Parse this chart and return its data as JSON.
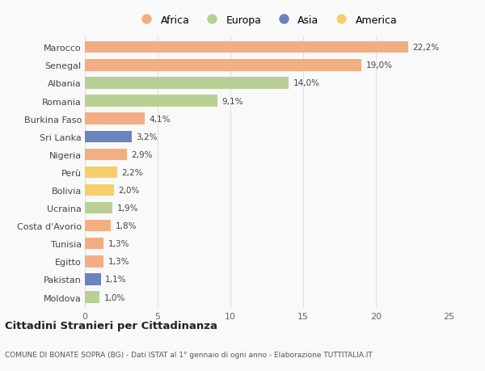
{
  "countries": [
    "Marocco",
    "Senegal",
    "Albania",
    "Romania",
    "Burkina Faso",
    "Sri Lanka",
    "Nigeria",
    "Perù",
    "Bolivia",
    "Ucraina",
    "Costa d'Avorio",
    "Tunisia",
    "Egitto",
    "Pakistan",
    "Moldova"
  ],
  "values": [
    22.2,
    19.0,
    14.0,
    9.1,
    4.1,
    3.2,
    2.9,
    2.2,
    2.0,
    1.9,
    1.8,
    1.3,
    1.3,
    1.1,
    1.0
  ],
  "continents": [
    "Africa",
    "Africa",
    "Europa",
    "Europa",
    "Africa",
    "Asia",
    "Africa",
    "America",
    "America",
    "Europa",
    "Africa",
    "Africa",
    "Africa",
    "Asia",
    "Europa"
  ],
  "colors": {
    "Africa": "#F2AE82",
    "Europa": "#BACF96",
    "Asia": "#6B84C0",
    "America": "#F5D06A"
  },
  "xlim": [
    0,
    25
  ],
  "xticks": [
    0,
    5,
    10,
    15,
    20,
    25
  ],
  "title": "Cittadini Stranieri per Cittadinanza",
  "subtitle": "COMUNE DI BONATE SOPRA (BG) - Dati ISTAT al 1° gennaio di ogni anno - Elaborazione TUTTITALIA.IT",
  "background_color": "#f9f9f9",
  "bar_height": 0.65,
  "grid_color": "#e0e0e0"
}
